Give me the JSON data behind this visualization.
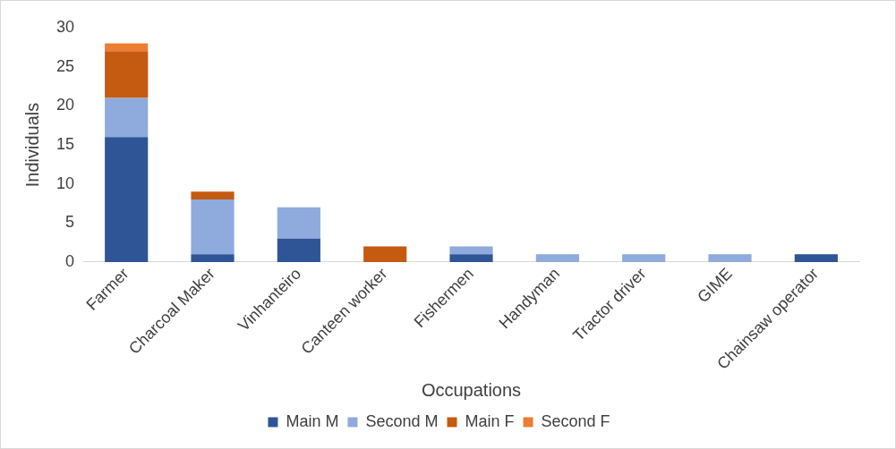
{
  "chart_data": {
    "type": "bar",
    "stacked": true,
    "xlabel": "Occupations",
    "ylabel": "Individuals",
    "categories": [
      "Farmer",
      "Charcoal Maker",
      "Vinhanteiro",
      "Canteen worker",
      "Fishermen",
      "Handyman",
      "Tractor driver",
      "GIME",
      "Chainsaw operator"
    ],
    "series": [
      {
        "name": "Main M",
        "color": "#2f5597",
        "values": [
          16,
          1,
          3,
          0,
          1,
          0,
          0,
          0,
          1
        ]
      },
      {
        "name": "Second M",
        "color": "#8faadc",
        "values": [
          5,
          7,
          4,
          0,
          1,
          1,
          1,
          1,
          0
        ]
      },
      {
        "name": "Main F",
        "color": "#c55a11",
        "values": [
          6,
          1,
          0,
          2,
          0,
          0,
          0,
          0,
          0
        ]
      },
      {
        "name": "Second F",
        "color": "#ed7d31",
        "values": [
          1,
          0,
          0,
          0,
          0,
          0,
          0,
          0,
          0
        ]
      }
    ],
    "ylim": [
      0,
      30
    ],
    "yticks": [
      0,
      5,
      10,
      15,
      20,
      25,
      30
    ],
    "grid": false,
    "legend": "bottom"
  }
}
